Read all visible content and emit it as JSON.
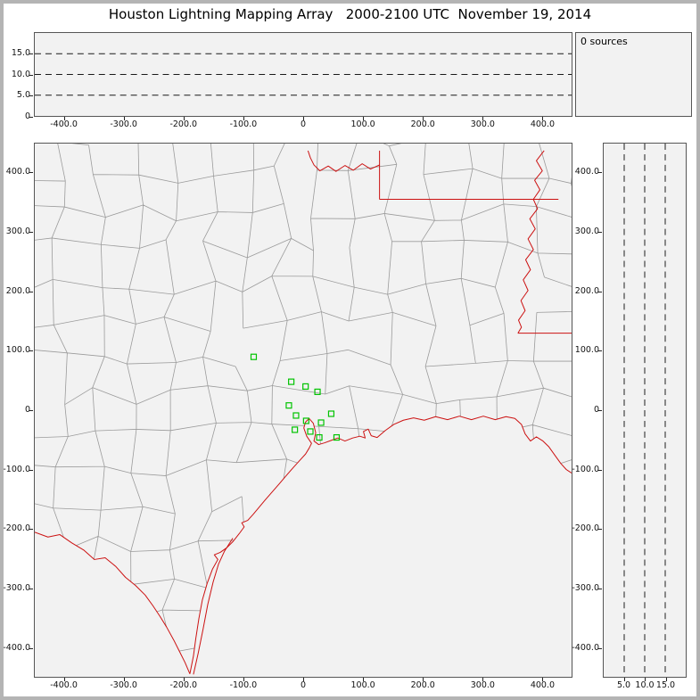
{
  "title": "Houston Lightning Mapping Array   2000-2100 UTC  November 19, 2014",
  "sources_label": "0 sources",
  "source_count": 0,
  "colors": {
    "panel_bg": "#f2f2f2",
    "frame_gray": "#b4b4b4",
    "county_gray": "#9b9b9b",
    "state_border_red": "#cc1111",
    "station_green": "#00c300",
    "dashed_line": "#1a1a1a"
  },
  "axes": {
    "ew_ticks": [
      {
        "v": -400,
        "label": "-400.0"
      },
      {
        "v": -300,
        "label": "-300.0"
      },
      {
        "v": -200,
        "label": "-200.0"
      },
      {
        "v": -100,
        "label": "-100.0"
      },
      {
        "v": 0,
        "label": "0"
      },
      {
        "v": 100,
        "label": "100.0"
      },
      {
        "v": 200,
        "label": "200.0"
      },
      {
        "v": 300,
        "label": "300.0"
      },
      {
        "v": 400,
        "label": "400.0"
      }
    ],
    "ns_ticks": [
      {
        "v": 400,
        "label": "400.0"
      },
      {
        "v": 300,
        "label": "300.0"
      },
      {
        "v": 200,
        "label": "200.0"
      },
      {
        "v": 100,
        "label": "100.0"
      },
      {
        "v": 0,
        "label": "0"
      },
      {
        "v": -100,
        "label": "-100.0"
      },
      {
        "v": -200,
        "label": "-200.0"
      },
      {
        "v": -300,
        "label": "-300.0"
      },
      {
        "v": -400,
        "label": "-400.0"
      }
    ],
    "alt_ticks_left": [
      {
        "v": 15,
        "label": "15.0"
      },
      {
        "v": 10,
        "label": "10.0"
      },
      {
        "v": 5,
        "label": "5.0"
      },
      {
        "v": 0,
        "label": "0"
      }
    ],
    "alt_ticks_bottom": [
      {
        "v": 5,
        "label": "5.0"
      },
      {
        "v": 10,
        "label": "10.0"
      },
      {
        "v": 15,
        "label": "15.0"
      }
    ],
    "alt_gridlines_km": [
      5,
      10,
      15
    ]
  },
  "map": {
    "stations_km": [
      [
        -83,
        90
      ],
      [
        -20,
        48
      ],
      [
        4,
        40
      ],
      [
        24,
        31
      ],
      [
        -24,
        8
      ],
      [
        -12,
        -9
      ],
      [
        5,
        -18
      ],
      [
        -14,
        -33
      ],
      [
        12,
        -36
      ],
      [
        30,
        -21
      ],
      [
        47,
        -6
      ],
      [
        27,
        -46
      ],
      [
        56,
        -46
      ]
    ],
    "borders_km": {
      "coast": [
        [
          -190,
          -445
        ],
        [
          -184,
          -415
        ],
        [
          -180,
          -385
        ],
        [
          -175,
          -352
        ],
        [
          -169,
          -320
        ],
        [
          -161,
          -292
        ],
        [
          -152,
          -268
        ],
        [
          -143,
          -252
        ],
        [
          -149,
          -244
        ],
        [
          -139,
          -240
        ],
        [
          -128,
          -232
        ],
        [
          -118,
          -222
        ],
        [
          -107,
          -208
        ],
        [
          -99,
          -197
        ],
        [
          -103,
          -190
        ],
        [
          -93,
          -186
        ],
        [
          -84,
          -176
        ],
        [
          -75,
          -165
        ],
        [
          -64,
          -152
        ],
        [
          -52,
          -138
        ],
        [
          -40,
          -124
        ],
        [
          -28,
          -110
        ],
        [
          -16,
          -96
        ],
        [
          -5,
          -84
        ],
        [
          4,
          -74
        ],
        [
          10,
          -64
        ],
        [
          14,
          -56
        ],
        [
          6,
          -44
        ],
        [
          1,
          -30
        ],
        [
          4,
          -20
        ],
        [
          10,
          -14
        ],
        [
          17,
          -22
        ],
        [
          21,
          -38
        ],
        [
          18,
          -52
        ],
        [
          26,
          -58
        ],
        [
          36,
          -55
        ],
        [
          47,
          -51
        ],
        [
          58,
          -47
        ],
        [
          70,
          -52
        ],
        [
          83,
          -47
        ],
        [
          95,
          -44
        ],
        [
          104,
          -47
        ],
        [
          101,
          -36
        ],
        [
          109,
          -32
        ],
        [
          114,
          -43
        ],
        [
          124,
          -46
        ],
        [
          138,
          -34
        ],
        [
          152,
          -24
        ],
        [
          168,
          -17
        ],
        [
          185,
          -13
        ],
        [
          203,
          -17
        ],
        [
          222,
          -11
        ],
        [
          242,
          -16
        ],
        [
          262,
          -10
        ],
        [
          282,
          -16
        ],
        [
          302,
          -10
        ],
        [
          322,
          -16
        ],
        [
          340,
          -11
        ],
        [
          355,
          -14
        ],
        [
          366,
          -24
        ],
        [
          372,
          -40
        ],
        [
          381,
          -52
        ],
        [
          391,
          -45
        ],
        [
          402,
          -52
        ],
        [
          412,
          -62
        ],
        [
          422,
          -76
        ],
        [
          432,
          -90
        ],
        [
          441,
          -100
        ],
        [
          450,
          -106
        ]
      ],
      "rio_grande": [
        [
          -450,
          -206
        ],
        [
          -428,
          -214
        ],
        [
          -408,
          -210
        ],
        [
          -388,
          -224
        ],
        [
          -368,
          -236
        ],
        [
          -350,
          -252
        ],
        [
          -332,
          -249
        ],
        [
          -314,
          -264
        ],
        [
          -298,
          -282
        ],
        [
          -281,
          -296
        ],
        [
          -265,
          -312
        ],
        [
          -252,
          -330
        ],
        [
          -240,
          -348
        ],
        [
          -229,
          -366
        ],
        [
          -217,
          -388
        ],
        [
          -207,
          -408
        ],
        [
          -198,
          -426
        ],
        [
          -190,
          -445
        ]
      ],
      "barrier_island": [
        [
          -184,
          -446
        ],
        [
          -176,
          -410
        ],
        [
          -168,
          -370
        ],
        [
          -160,
          -328
        ],
        [
          -151,
          -290
        ],
        [
          -142,
          -260
        ],
        [
          -132,
          -238
        ],
        [
          -118,
          -216
        ]
      ],
      "red_river": [
        [
          128,
          414
        ],
        [
          113,
          407
        ],
        [
          99,
          416
        ],
        [
          84,
          405
        ],
        [
          70,
          413
        ],
        [
          55,
          403
        ],
        [
          42,
          412
        ],
        [
          28,
          404
        ],
        [
          18,
          414
        ],
        [
          12,
          426
        ],
        [
          8,
          438
        ]
      ],
      "tx_ar_vertical": [
        [
          128,
          438
        ],
        [
          128,
          356
        ]
      ],
      "ar_la": [
        [
          128,
          356
        ],
        [
          428,
          356
        ]
      ],
      "mississippi": [
        [
          404,
          438
        ],
        [
          391,
          421
        ],
        [
          401,
          404
        ],
        [
          388,
          388
        ],
        [
          397,
          372
        ],
        [
          386,
          356
        ],
        [
          393,
          340
        ],
        [
          380,
          323
        ],
        [
          389,
          306
        ],
        [
          377,
          289
        ],
        [
          386,
          271
        ],
        [
          373,
          254
        ],
        [
          381,
          237
        ],
        [
          369,
          220
        ],
        [
          377,
          202
        ],
        [
          365,
          185
        ],
        [
          372,
          168
        ],
        [
          361,
          152
        ],
        [
          366,
          140
        ],
        [
          360,
          130
        ]
      ],
      "la_ms_31n": [
        [
          360,
          130
        ],
        [
          450,
          130
        ]
      ]
    }
  },
  "chart_data": [
    {
      "type": "scatter",
      "panel": "top-altitude-vs-east-west",
      "title": "Altitude (km) vs East-West distance (km)",
      "xlim": [
        -450,
        450
      ],
      "ylim": [
        0,
        20
      ],
      "x_tick_labels": [
        "-400.0",
        "-300.0",
        "-200.0",
        "-100.0",
        "0",
        "100.0",
        "200.0",
        "300.0",
        "400.0"
      ],
      "y_tick_labels": [
        "15.0",
        "10.0",
        "5.0",
        "0"
      ],
      "dashed_gridlines_y_km": [
        5,
        10,
        15
      ],
      "grid": "dashed horizontal",
      "series": [
        {
          "name": "lightning sources",
          "points": []
        }
      ]
    },
    {
      "type": "scatter",
      "panel": "plan-view-map",
      "title": "Plan view: Texas / Louisiana county map with Houston LMA stations, origin at Houston",
      "xlim": [
        -450,
        450
      ],
      "ylim": [
        -450,
        450
      ],
      "x_tick_labels": [
        "-400.0",
        "-300.0",
        "-200.0",
        "-100.0",
        "0",
        "100.0",
        "200.0",
        "300.0",
        "400.0"
      ],
      "y_tick_labels": [
        "400.0",
        "300.0",
        "200.0",
        "100.0",
        "0",
        "-100.0",
        "-200.0",
        "-300.0",
        "-400.0"
      ],
      "series": [
        {
          "name": "LMA stations",
          "marker": "open-square",
          "color": "#00c300",
          "points": [
            [
              -83,
              90
            ],
            [
              -20,
              48
            ],
            [
              4,
              40
            ],
            [
              24,
              31
            ],
            [
              -24,
              8
            ],
            [
              -12,
              -9
            ],
            [
              5,
              -18
            ],
            [
              -14,
              -33
            ],
            [
              12,
              -36
            ],
            [
              30,
              -21
            ],
            [
              47,
              -6
            ],
            [
              27,
              -46
            ],
            [
              56,
              -46
            ]
          ]
        },
        {
          "name": "lightning sources",
          "points": []
        }
      ]
    },
    {
      "type": "scatter",
      "panel": "right-altitude-vs-north-south",
      "title": "North-South distance (km) vs Altitude (km)",
      "xlim": [
        0,
        20
      ],
      "ylim": [
        -450,
        450
      ],
      "x_tick_labels": [
        "5.0",
        "10.0",
        "15.0"
      ],
      "y_tick_labels": [
        "400.0",
        "300.0",
        "200.0",
        "100.0",
        "0",
        "-100.0",
        "-200.0",
        "-300.0",
        "-400.0"
      ],
      "dashed_gridlines_x_km": [
        5,
        10,
        15
      ],
      "grid": "dashed vertical",
      "series": [
        {
          "name": "lightning sources",
          "points": []
        }
      ]
    }
  ]
}
